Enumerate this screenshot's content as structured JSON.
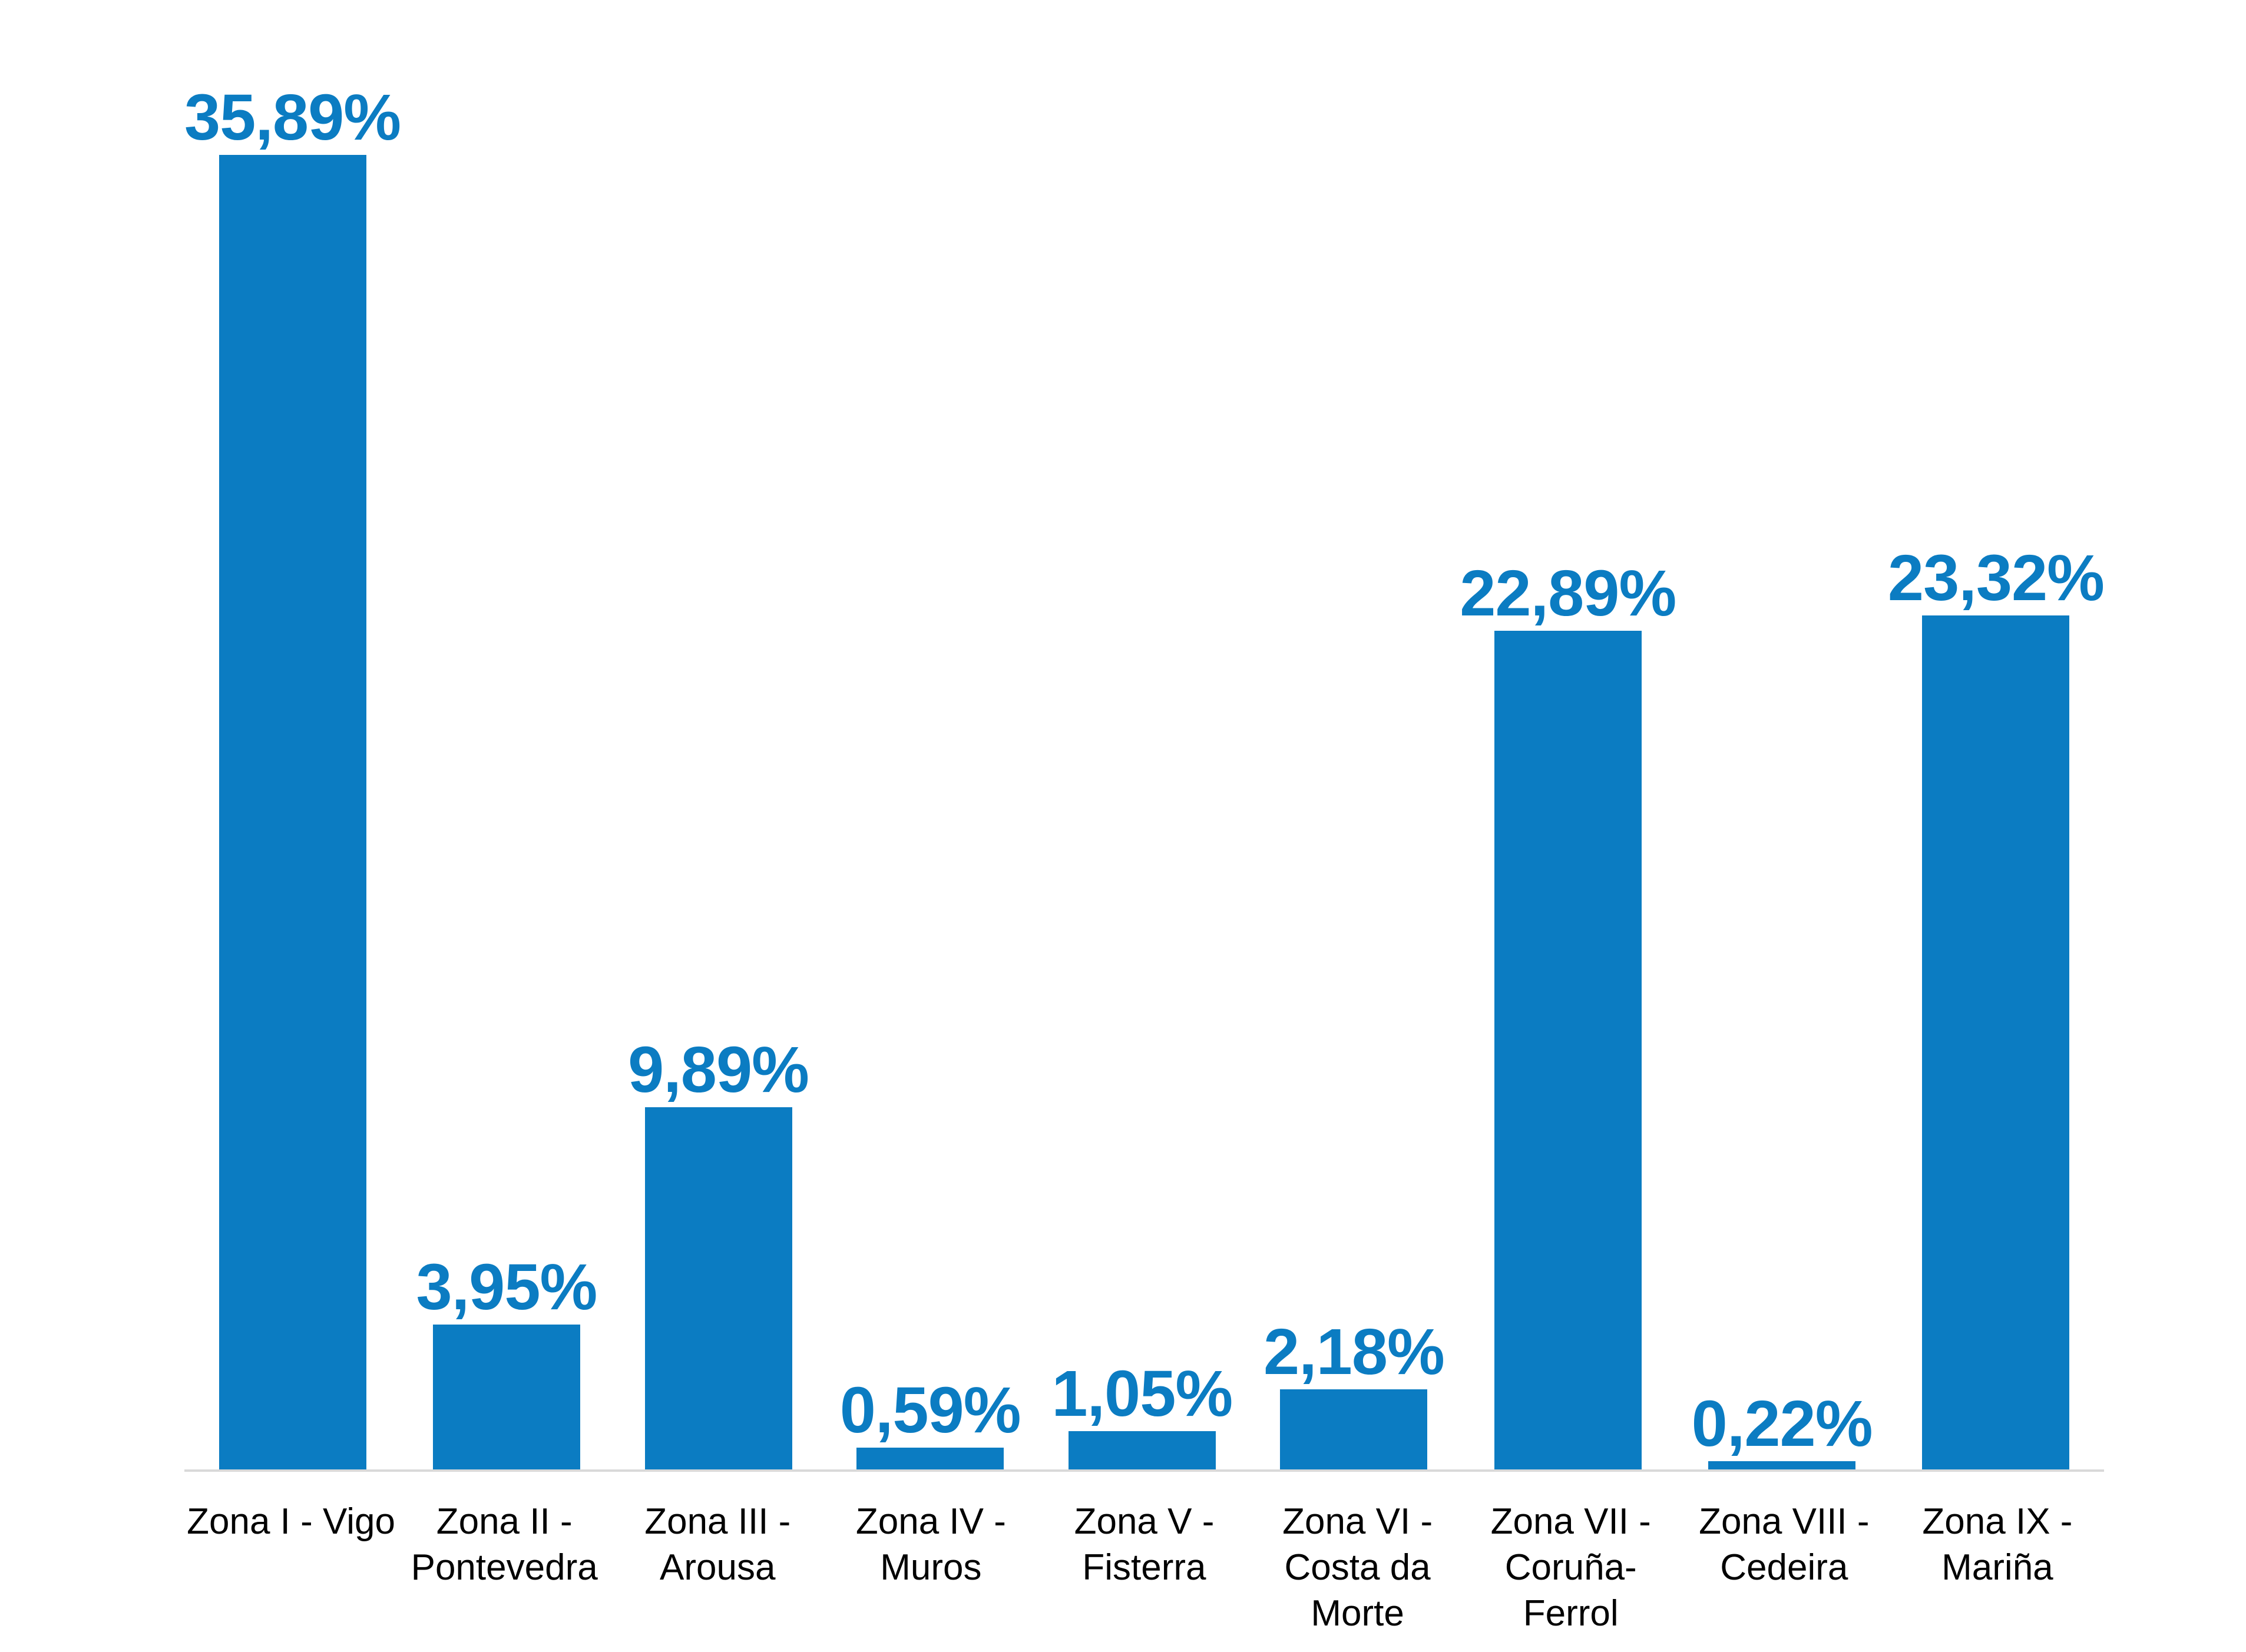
{
  "chart_data": {
    "type": "bar",
    "title": "",
    "xlabel": "",
    "ylabel": "",
    "categories": [
      "Zona I - Vigo",
      "Zona II - Pontevedra",
      "Zona III - Arousa",
      "Zona IV - Muros",
      "Zona V - Fisterra",
      "Zona VI - Costa da Morte",
      "Zona VII - Coruña-Ferrol",
      "Zona VIII - Cedeira",
      "Zona IX - Mariña"
    ],
    "values": [
      35.89,
      3.95,
      9.89,
      0.59,
      1.05,
      2.18,
      22.89,
      0.22,
      23.32
    ],
    "value_labels": [
      "35,89%",
      "3,95%",
      "9,89%",
      "0,59%",
      "1,05%",
      "2,18%",
      "22,89%",
      "0,22%",
      "23,32%"
    ],
    "ylim": [
      0,
      36
    ],
    "grid": false,
    "legend_position": "none",
    "decimal_separator": ",",
    "colors": {
      "bar": "#0b7cc2",
      "value_label": "#0b7cc2",
      "tick_label": "#000000",
      "axis_line": "#d9d9d9",
      "background": "#ffffff"
    }
  }
}
